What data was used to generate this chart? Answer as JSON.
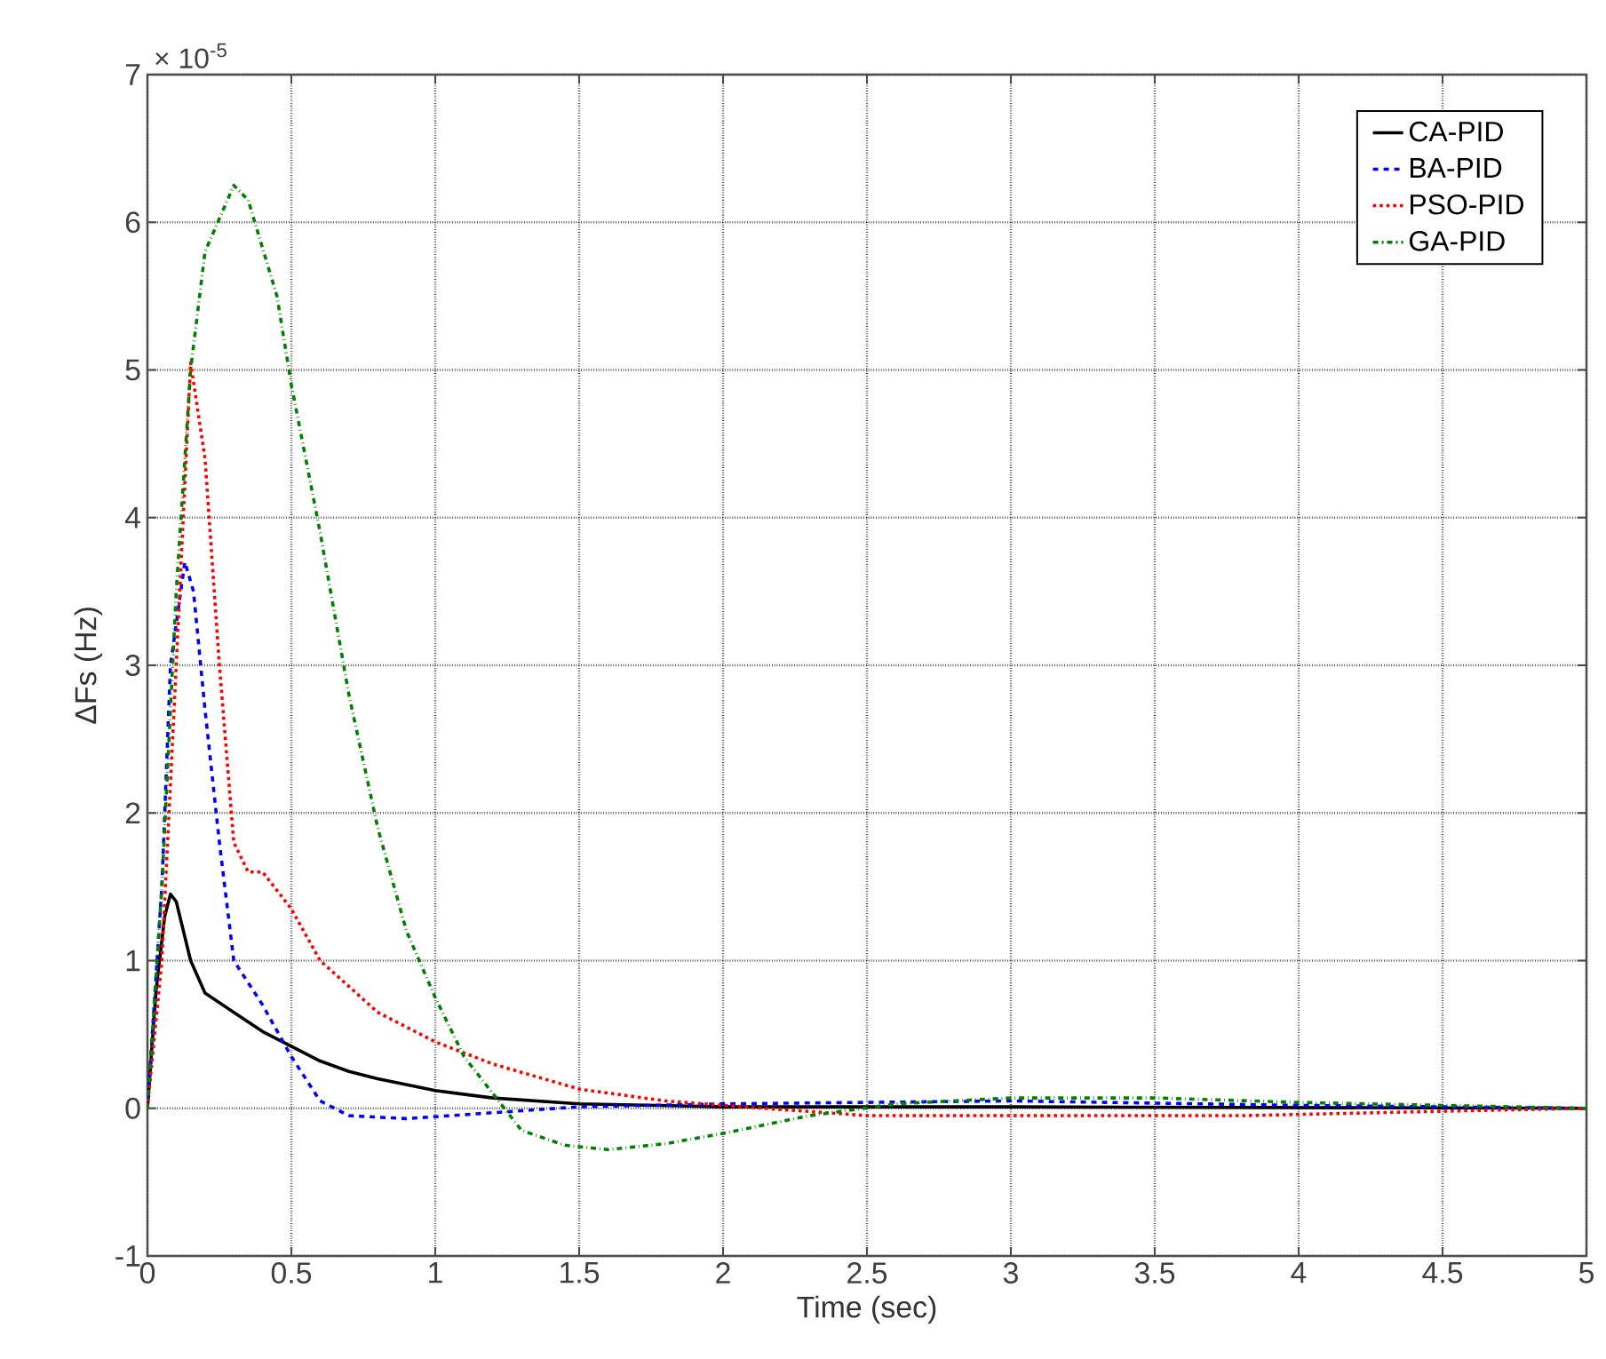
{
  "chart_data": {
    "type": "line",
    "xlabel": "Time (sec)",
    "ylabel": "ΔFs (Hz)",
    "annotations": [
      "× 10$^{-5}$"
    ],
    "xlim": [
      0,
      5
    ],
    "ylim": [
      -1,
      7
    ],
    "xticks": [
      0,
      0.5,
      1,
      1.5,
      2,
      2.5,
      3,
      3.5,
      4,
      4.5,
      5
    ],
    "yticks": [
      -1,
      0,
      1,
      2,
      3,
      4,
      5,
      6,
      7
    ],
    "grid": true,
    "legend": "top right",
    "marker": "none",
    "series": [
      {
        "name": "CA-PID",
        "color": "#000000",
        "line_style": "solid",
        "x": [
          0,
          0.03,
          0.06,
          0.08,
          0.1,
          0.15,
          0.2,
          0.3,
          0.4,
          0.5,
          0.6,
          0.7,
          0.8,
          1,
          1.2,
          1.5,
          2,
          3,
          5
        ],
        "values": [
          0,
          0.8,
          1.3,
          1.45,
          1.4,
          1.0,
          0.78,
          0.65,
          0.52,
          0.42,
          0.32,
          0.25,
          0.2,
          0.12,
          0.07,
          0.03,
          0.01,
          0.01,
          0
        ]
      },
      {
        "name": "BA-PID",
        "color": "#0000ff",
        "line_style": "dashed",
        "x": [
          0,
          0.05,
          0.08,
          0.13,
          0.16,
          0.2,
          0.25,
          0.3,
          0.4,
          0.5,
          0.6,
          0.7,
          0.9,
          1.2,
          1.5,
          2,
          3,
          4,
          5
        ],
        "values": [
          0,
          1.5,
          3.0,
          3.7,
          3.5,
          2.7,
          1.8,
          1.0,
          0.7,
          0.35,
          0.05,
          -0.05,
          -0.07,
          -0.03,
          0.01,
          0.03,
          0.05,
          0.02,
          0
        ]
      },
      {
        "name": "PSO-PID",
        "color": "#ff0000",
        "line_style": "dotted",
        "x": [
          0,
          0.05,
          0.1,
          0.15,
          0.2,
          0.25,
          0.3,
          0.35,
          0.4,
          0.5,
          0.6,
          0.8,
          1,
          1.2,
          1.5,
          1.8,
          2,
          2.5,
          3,
          3.8,
          4.5,
          5
        ],
        "values": [
          0,
          1.0,
          3.0,
          5.05,
          4.4,
          3.0,
          1.8,
          1.6,
          1.6,
          1.35,
          1.0,
          0.65,
          0.45,
          0.3,
          0.13,
          0.05,
          0.02,
          -0.05,
          -0.05,
          -0.05,
          -0.02,
          0
        ]
      },
      {
        "name": "GA-PID",
        "color": "#008000",
        "line_style": "dashdot",
        "x": [
          0,
          0.05,
          0.1,
          0.15,
          0.2,
          0.3,
          0.35,
          0.45,
          0.5,
          0.6,
          0.7,
          0.8,
          0.9,
          1,
          1.1,
          1.2,
          1.3,
          1.45,
          1.6,
          1.8,
          2,
          2.3,
          2.6,
          3,
          3.5,
          4,
          4.5,
          5
        ],
        "values": [
          0,
          1.5,
          3.5,
          5.0,
          5.8,
          6.25,
          6.15,
          5.5,
          4.9,
          3.9,
          2.8,
          1.9,
          1.2,
          0.75,
          0.35,
          0.1,
          -0.15,
          -0.25,
          -0.28,
          -0.24,
          -0.17,
          -0.05,
          0.03,
          0.07,
          0.07,
          0.04,
          0.02,
          0
        ]
      }
    ]
  }
}
